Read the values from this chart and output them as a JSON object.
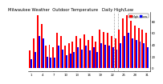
{
  "title": "Milwaukee Weather  Outdoor Temperature   Daily High/Low",
  "title_fontsize": 3.8,
  "legend_labels": [
    "High",
    "Low"
  ],
  "legend_colors": [
    "#ff0000",
    "#0000ff"
  ],
  "high_color": "#ff0000",
  "low_color": "#0000ff",
  "background_color": "#ffffff",
  "ylim": [
    -5,
    95
  ],
  "yticks": [
    0,
    20,
    40,
    60,
    80
  ],
  "ytick_labels": [
    "0",
    "20",
    "40",
    "60",
    "80"
  ],
  "highs": [
    30,
    50,
    90,
    75,
    38,
    40,
    35,
    60,
    55,
    38,
    42,
    45,
    55,
    50,
    58,
    48,
    55,
    45,
    65,
    62,
    60,
    55,
    50,
    65,
    85,
    90,
    80,
    72,
    68,
    65,
    60
  ],
  "lows": [
    15,
    28,
    55,
    50,
    20,
    18,
    18,
    38,
    32,
    22,
    25,
    28,
    35,
    32,
    38,
    30,
    35,
    28,
    42,
    40,
    38,
    35,
    32,
    42,
    55,
    60,
    50,
    48,
    45,
    42,
    35
  ],
  "dashed_vlines": [
    21.5,
    22.5
  ],
  "bar_width": 0.4,
  "tick_fontsize": 2.8,
  "label_every": 3
}
